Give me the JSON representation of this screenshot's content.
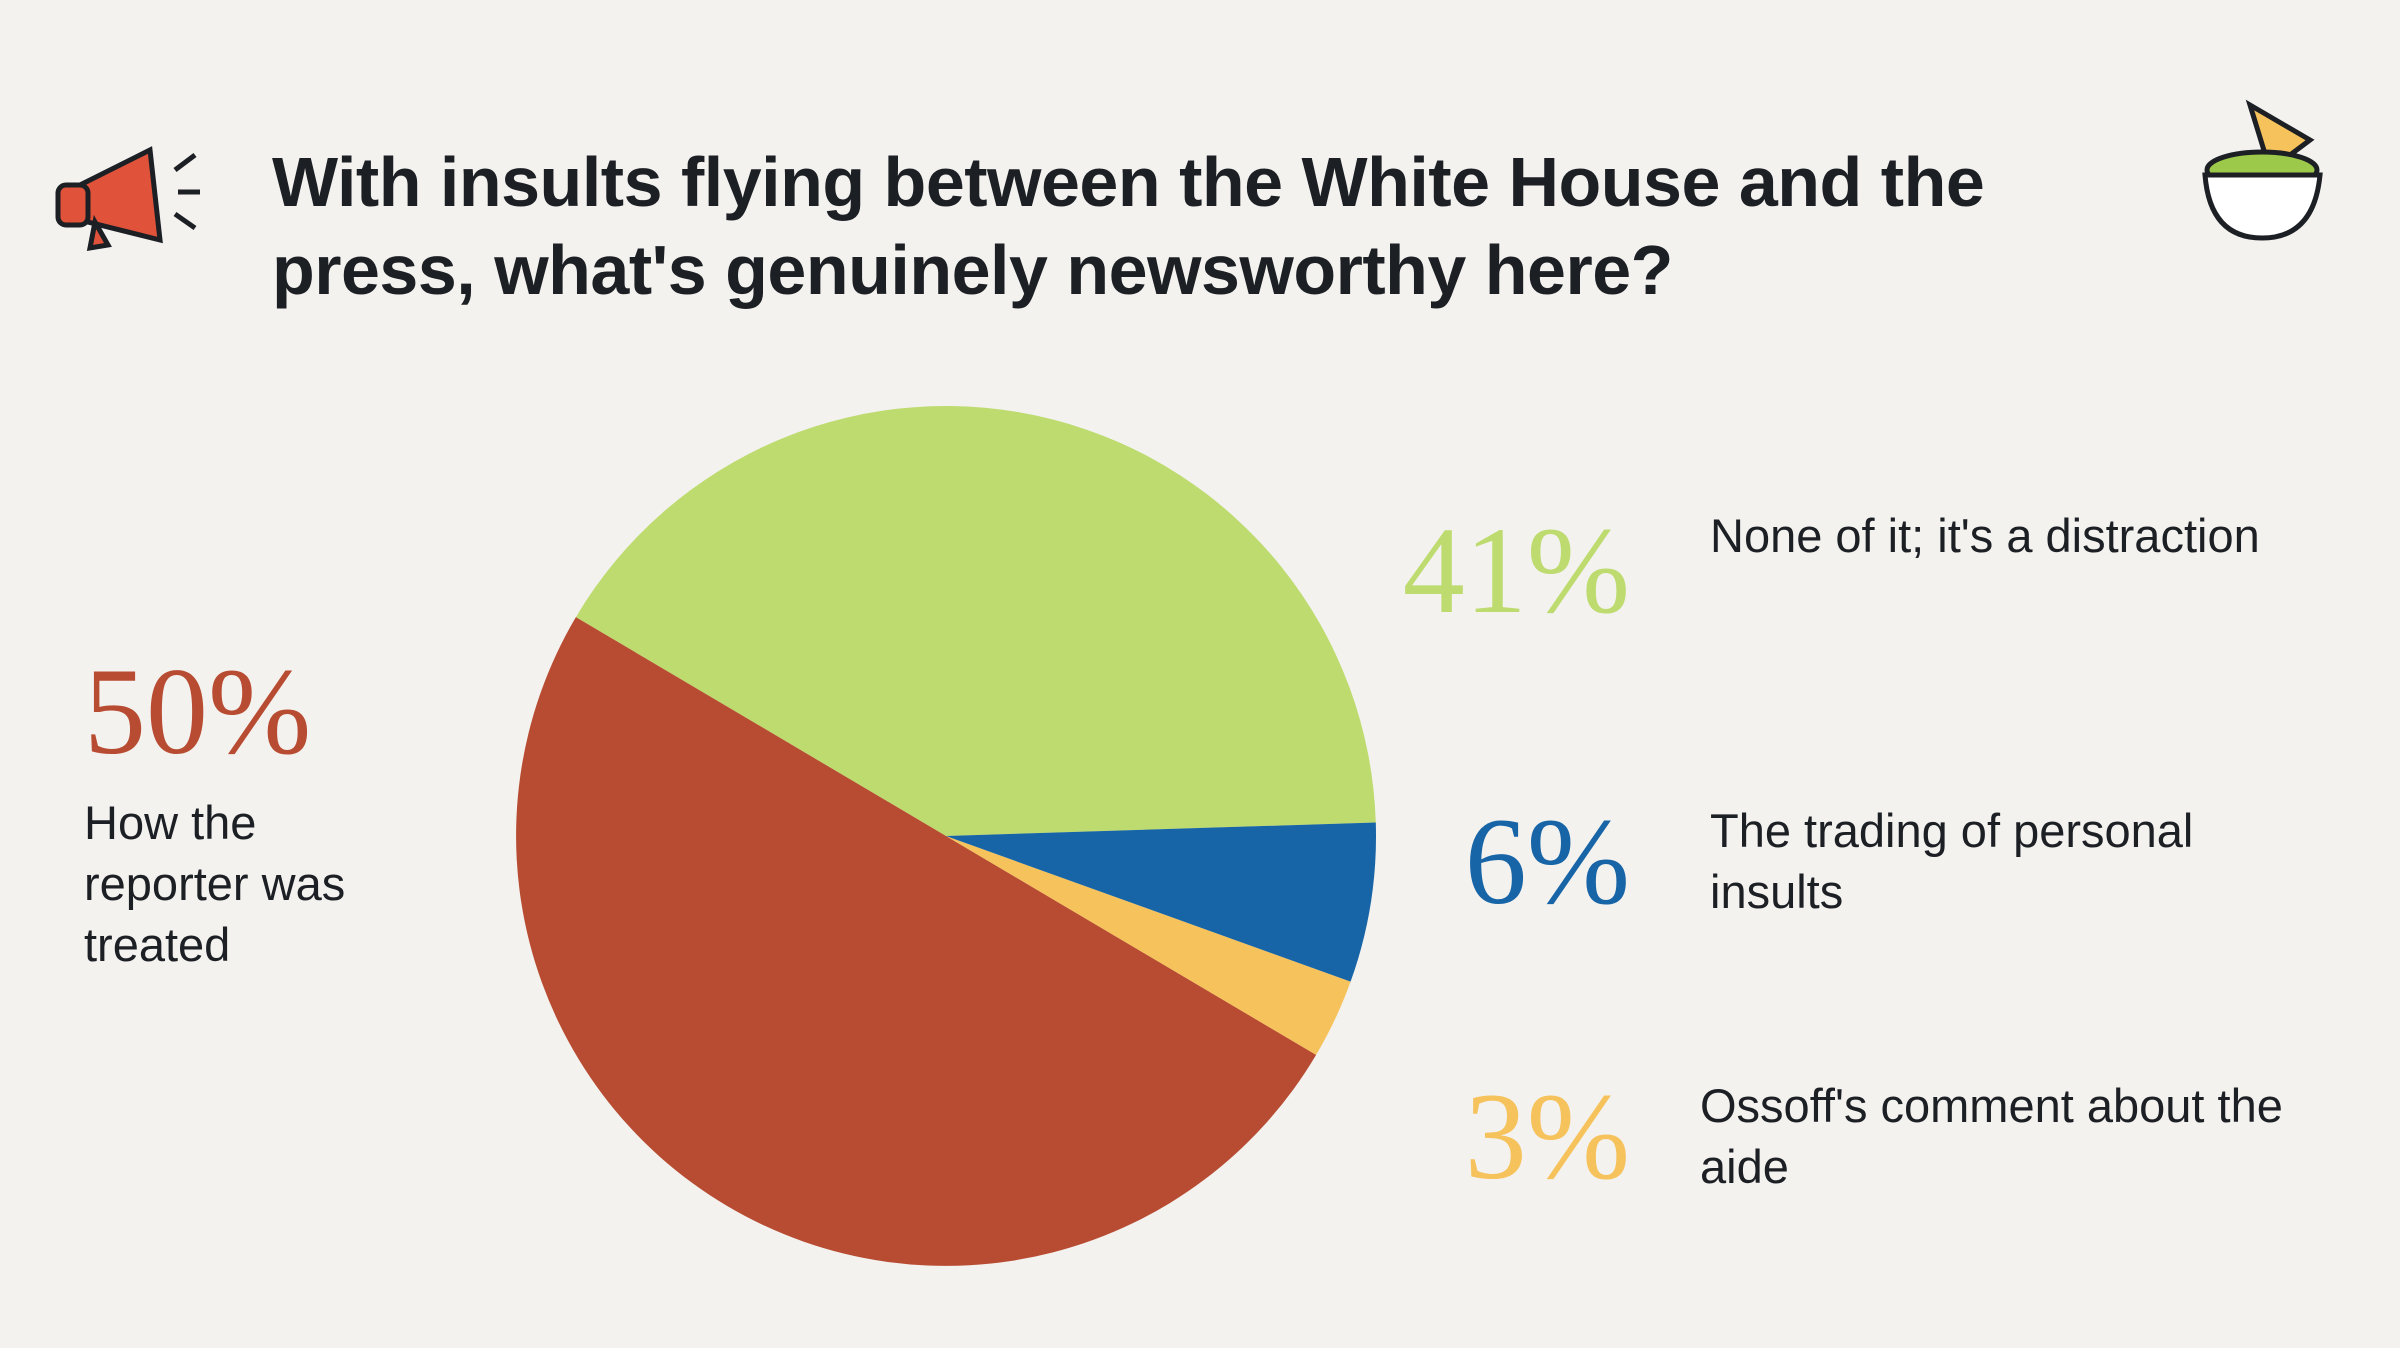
{
  "chart_data": {
    "type": "pie",
    "title": "With insults flying between the White House and the press, what's genuinely newsworthy here?",
    "categories": [
      "None of it; it's a distraction",
      "How the reporter was treated",
      "Ossoff's comment about the aide",
      "The trading of personal insults"
    ],
    "values": [
      41,
      50,
      3,
      6
    ],
    "value_labels": [
      "41%",
      "50%",
      "3%",
      "6%"
    ],
    "colors": [
      "#bedb6f",
      "#b84c32",
      "#f6c25b",
      "#1764a6"
    ]
  }
}
